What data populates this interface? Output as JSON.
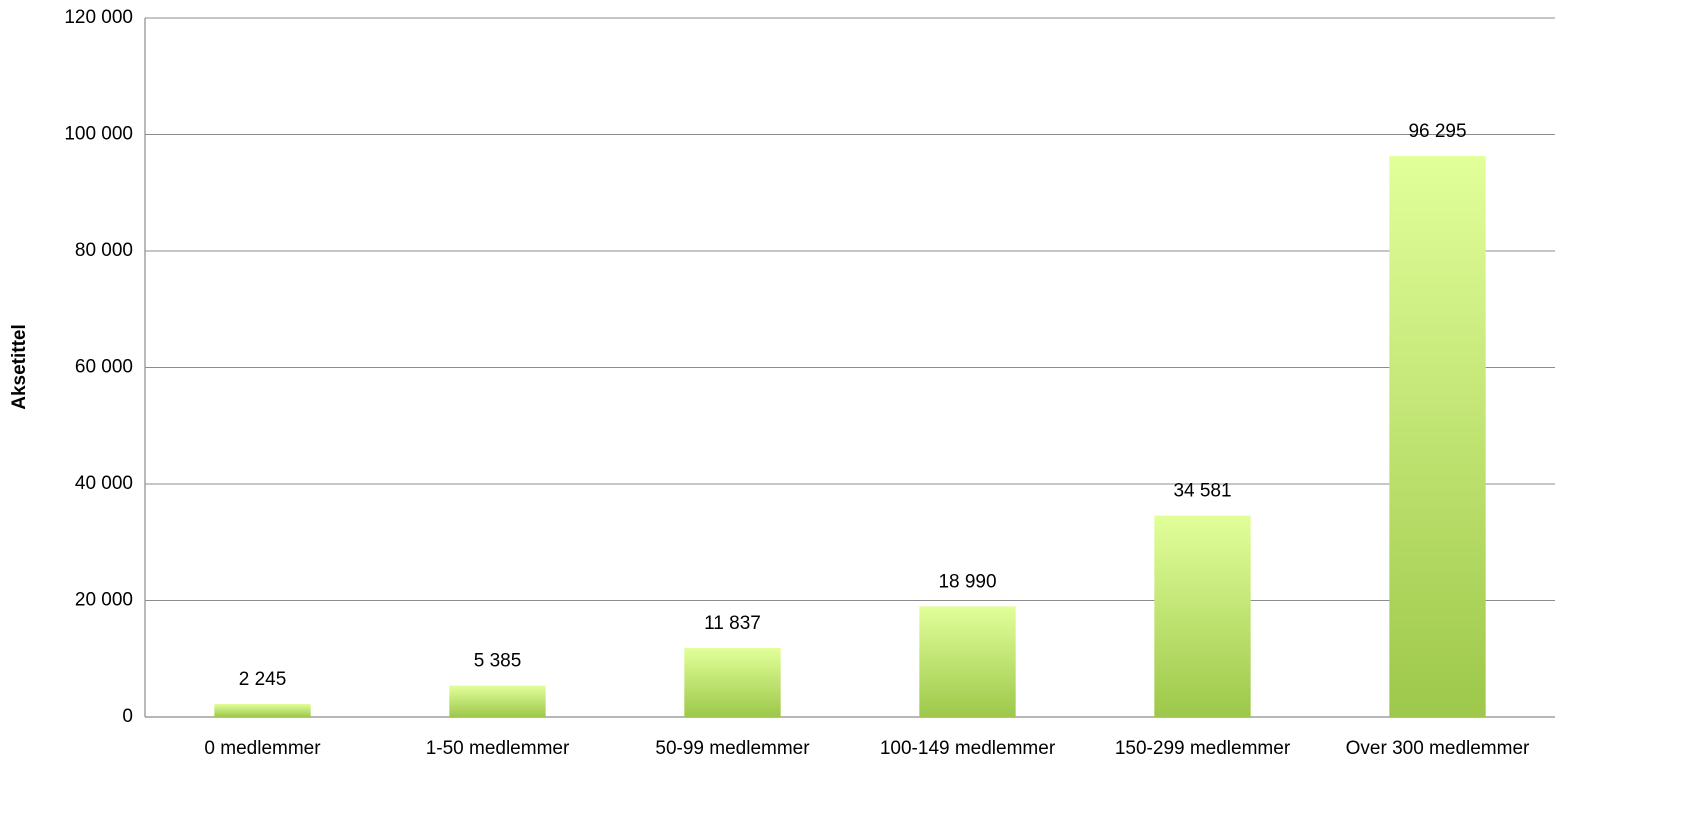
{
  "chart_data": {
    "type": "bar",
    "y_axis_label": "Aksetittel",
    "categories": [
      "0 medlemmer",
      "1-50 medlemmer",
      "50-99 medlemmer",
      "100-149 medlemmer",
      "150-299 medlemmer",
      "Over 300 medlemmer"
    ],
    "values": [
      2245,
      5385,
      11837,
      18990,
      34581,
      96295
    ],
    "value_labels": [
      "2 245",
      "5 385",
      "11 837",
      "18 990",
      "34 581",
      "96 295"
    ],
    "color": "#9dc84a",
    "ylim": [
      0,
      120000
    ],
    "yticks": [
      0,
      {
        "value": 20000,
        "label": "20 000"
      },
      {
        "value": 40000,
        "label": "40 000"
      },
      {
        "value": 60000,
        "label": "60 000"
      },
      {
        "value": 80000,
        "label": "80 000"
      },
      {
        "value": 100000,
        "label": "100 000"
      },
      {
        "value": 120000,
        "label": "120 000"
      }
    ],
    "grid": true
  }
}
